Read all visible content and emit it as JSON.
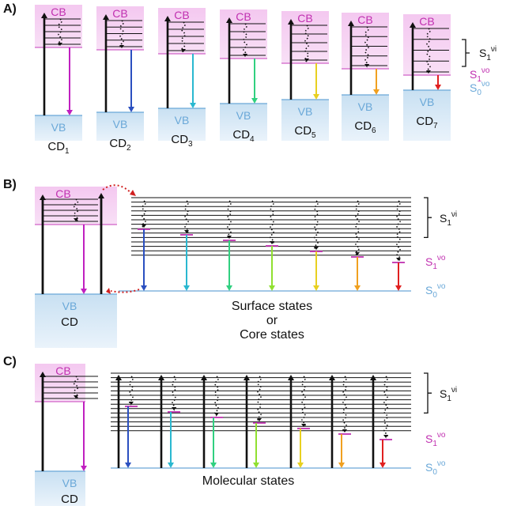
{
  "panels": {
    "a": {
      "label": "A)",
      "cb_label": "CB",
      "vb_label": "VB",
      "dots": [
        {
          "name": "CD",
          "sub": "1"
        },
        {
          "name": "CD",
          "sub": "2"
        },
        {
          "name": "CD",
          "sub": "3"
        },
        {
          "name": "CD",
          "sub": "4"
        },
        {
          "name": "CD",
          "sub": "5"
        },
        {
          "name": "CD",
          "sub": "6"
        },
        {
          "name": "CD",
          "sub": "7"
        }
      ],
      "emission_colors": [
        "#c020c0",
        "#2a4fc0",
        "#2ab8d0",
        "#30d080",
        "#e8d020",
        "#f0a020",
        "#e02020"
      ]
    },
    "b": {
      "label": "B)",
      "cb_label": "CB",
      "vb_label": "VB",
      "dot_label": "CD",
      "states_line1": "Surface states",
      "states_line2": "or",
      "states_line3": "Core states",
      "emission_colors": [
        "#2a4fc0",
        "#2ab8d0",
        "#30d080",
        "#90e030",
        "#e8d020",
        "#f0a020",
        "#e02020"
      ]
    },
    "c": {
      "label": "C)",
      "cb_label": "CB",
      "vb_label": "VB",
      "dot_label": "CD",
      "states_label": "Molecular states",
      "emission_colors": [
        "#2a4fc0",
        "#2ab8d0",
        "#30d080",
        "#90e030",
        "#e8d020",
        "#f0a020",
        "#e02020"
      ]
    }
  },
  "legend": {
    "s1vi": {
      "base": "S",
      "sub": "1",
      "sup": "νi"
    },
    "s1vo": {
      "base": "S",
      "sub": "1",
      "sup": "νo"
    },
    "s0vo": {
      "base": "S",
      "sub": "0",
      "sup": "νo"
    }
  },
  "colors": {
    "cb_text": "#c030b0",
    "cb_fill_top": "#f4c8f0",
    "cb_fill_bottom": "#f8e0f6",
    "cb_edge": "#d060c8",
    "vb_text": "#6aa8d8",
    "vb_fill_top": "#c8e0f2",
    "vb_fill_bottom": "#eaf3fb",
    "s1vo": "#c030b0",
    "s0vo": "#6aa8d8",
    "baseline": "#6aa8d8"
  }
}
